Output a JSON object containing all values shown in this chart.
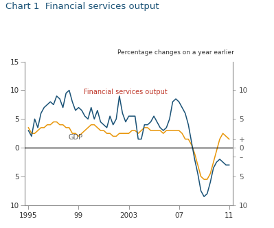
{
  "title": "Chart 1  Financial services output",
  "subtitle": "Percentage changes on a year earlier",
  "fs_color": "#1a5276",
  "gdp_color": "#e8960a",
  "fs_label": "Financial services output",
  "gdp_label": "GDP",
  "title_color": "#1a5276",
  "fs_label_color": "#c0392b",
  "gdp_label_color": "#555555",
  "ylim_bottom": -10,
  "ylim_top": 15,
  "xlim_left": 1994.7,
  "xlim_right": 2011.3,
  "x_tick_positions": [
    1995,
    1999,
    2003,
    2007,
    2011
  ],
  "x_tick_labels": [
    "1995",
    "99",
    "2003",
    "07",
    "11"
  ],
  "y_left_ticks": [
    -10,
    -5,
    0,
    5,
    10,
    15
  ],
  "y_left_labels": [
    "10",
    "5",
    "0",
    "5",
    "10",
    "15"
  ],
  "y_right_ticks": [
    -10,
    -5,
    0,
    1,
    5,
    10
  ],
  "y_right_labels": [
    "10",
    "5",
    "0",
    "–",
    "+",
    "10"
  ],
  "fs_data": [
    [
      1995.0,
      3.0
    ],
    [
      1995.25,
      2.0
    ],
    [
      1995.5,
      5.0
    ],
    [
      1995.75,
      3.5
    ],
    [
      1996.0,
      6.0
    ],
    [
      1996.25,
      7.0
    ],
    [
      1996.5,
      7.5
    ],
    [
      1996.75,
      8.0
    ],
    [
      1997.0,
      7.5
    ],
    [
      1997.25,
      9.0
    ],
    [
      1997.5,
      8.5
    ],
    [
      1997.75,
      7.0
    ],
    [
      1998.0,
      9.5
    ],
    [
      1998.25,
      10.0
    ],
    [
      1998.5,
      8.0
    ],
    [
      1998.75,
      6.5
    ],
    [
      1999.0,
      7.0
    ],
    [
      1999.25,
      6.5
    ],
    [
      1999.5,
      5.5
    ],
    [
      1999.75,
      5.0
    ],
    [
      2000.0,
      7.0
    ],
    [
      2000.25,
      5.0
    ],
    [
      2000.5,
      6.5
    ],
    [
      2000.75,
      4.5
    ],
    [
      2001.0,
      4.0
    ],
    [
      2001.25,
      3.5
    ],
    [
      2001.5,
      5.5
    ],
    [
      2001.75,
      4.0
    ],
    [
      2002.0,
      5.0
    ],
    [
      2002.25,
      9.0
    ],
    [
      2002.5,
      6.0
    ],
    [
      2002.75,
      4.5
    ],
    [
      2003.0,
      5.5
    ],
    [
      2003.25,
      5.5
    ],
    [
      2003.5,
      5.5
    ],
    [
      2003.75,
      1.5
    ],
    [
      2004.0,
      1.5
    ],
    [
      2004.25,
      4.0
    ],
    [
      2004.5,
      4.0
    ],
    [
      2004.75,
      4.5
    ],
    [
      2005.0,
      5.5
    ],
    [
      2005.25,
      4.5
    ],
    [
      2005.5,
      3.5
    ],
    [
      2005.75,
      3.0
    ],
    [
      2006.0,
      3.5
    ],
    [
      2006.25,
      5.0
    ],
    [
      2006.5,
      8.0
    ],
    [
      2006.75,
      8.5
    ],
    [
      2007.0,
      8.0
    ],
    [
      2007.25,
      7.0
    ],
    [
      2007.5,
      6.0
    ],
    [
      2007.75,
      4.0
    ],
    [
      2008.0,
      1.0
    ],
    [
      2008.25,
      -2.0
    ],
    [
      2008.5,
      -4.5
    ],
    [
      2008.75,
      -7.5
    ],
    [
      2009.0,
      -8.5
    ],
    [
      2009.25,
      -8.0
    ],
    [
      2009.5,
      -6.0
    ],
    [
      2009.75,
      -3.5
    ],
    [
      2010.0,
      -2.5
    ],
    [
      2010.25,
      -2.0
    ],
    [
      2010.5,
      -2.5
    ],
    [
      2010.75,
      -3.0
    ],
    [
      2011.0,
      -3.0
    ]
  ],
  "gdp_data": [
    [
      1995.0,
      3.5
    ],
    [
      1995.25,
      2.5
    ],
    [
      1995.5,
      2.5
    ],
    [
      1995.75,
      3.0
    ],
    [
      1996.0,
      3.5
    ],
    [
      1996.25,
      3.5
    ],
    [
      1996.5,
      4.0
    ],
    [
      1996.75,
      4.0
    ],
    [
      1997.0,
      4.5
    ],
    [
      1997.25,
      4.5
    ],
    [
      1997.5,
      4.0
    ],
    [
      1997.75,
      4.0
    ],
    [
      1998.0,
      3.5
    ],
    [
      1998.25,
      3.5
    ],
    [
      1998.5,
      2.5
    ],
    [
      1998.75,
      2.5
    ],
    [
      1999.0,
      2.0
    ],
    [
      1999.25,
      2.5
    ],
    [
      1999.5,
      3.0
    ],
    [
      1999.75,
      3.5
    ],
    [
      2000.0,
      4.0
    ],
    [
      2000.25,
      4.0
    ],
    [
      2000.5,
      3.5
    ],
    [
      2000.75,
      3.0
    ],
    [
      2001.0,
      3.0
    ],
    [
      2001.25,
      2.5
    ],
    [
      2001.5,
      2.5
    ],
    [
      2001.75,
      2.0
    ],
    [
      2002.0,
      2.0
    ],
    [
      2002.25,
      2.5
    ],
    [
      2002.5,
      2.5
    ],
    [
      2002.75,
      2.5
    ],
    [
      2003.0,
      2.5
    ],
    [
      2003.25,
      3.0
    ],
    [
      2003.5,
      3.0
    ],
    [
      2003.75,
      2.5
    ],
    [
      2004.0,
      3.0
    ],
    [
      2004.25,
      3.5
    ],
    [
      2004.5,
      3.5
    ],
    [
      2004.75,
      3.0
    ],
    [
      2005.0,
      3.0
    ],
    [
      2005.25,
      3.0
    ],
    [
      2005.5,
      3.0
    ],
    [
      2005.75,
      2.5
    ],
    [
      2006.0,
      3.0
    ],
    [
      2006.25,
      3.0
    ],
    [
      2006.5,
      3.0
    ],
    [
      2006.75,
      3.0
    ],
    [
      2007.0,
      3.0
    ],
    [
      2007.25,
      2.5
    ],
    [
      2007.5,
      1.5
    ],
    [
      2007.75,
      1.5
    ],
    [
      2008.0,
      0.5
    ],
    [
      2008.25,
      -1.0
    ],
    [
      2008.5,
      -3.0
    ],
    [
      2008.75,
      -5.0
    ],
    [
      2009.0,
      -5.5
    ],
    [
      2009.25,
      -5.5
    ],
    [
      2009.5,
      -4.5
    ],
    [
      2009.75,
      -2.5
    ],
    [
      2010.0,
      -0.5
    ],
    [
      2010.25,
      1.5
    ],
    [
      2010.5,
      2.5
    ],
    [
      2010.75,
      2.0
    ],
    [
      2011.0,
      1.5
    ]
  ]
}
